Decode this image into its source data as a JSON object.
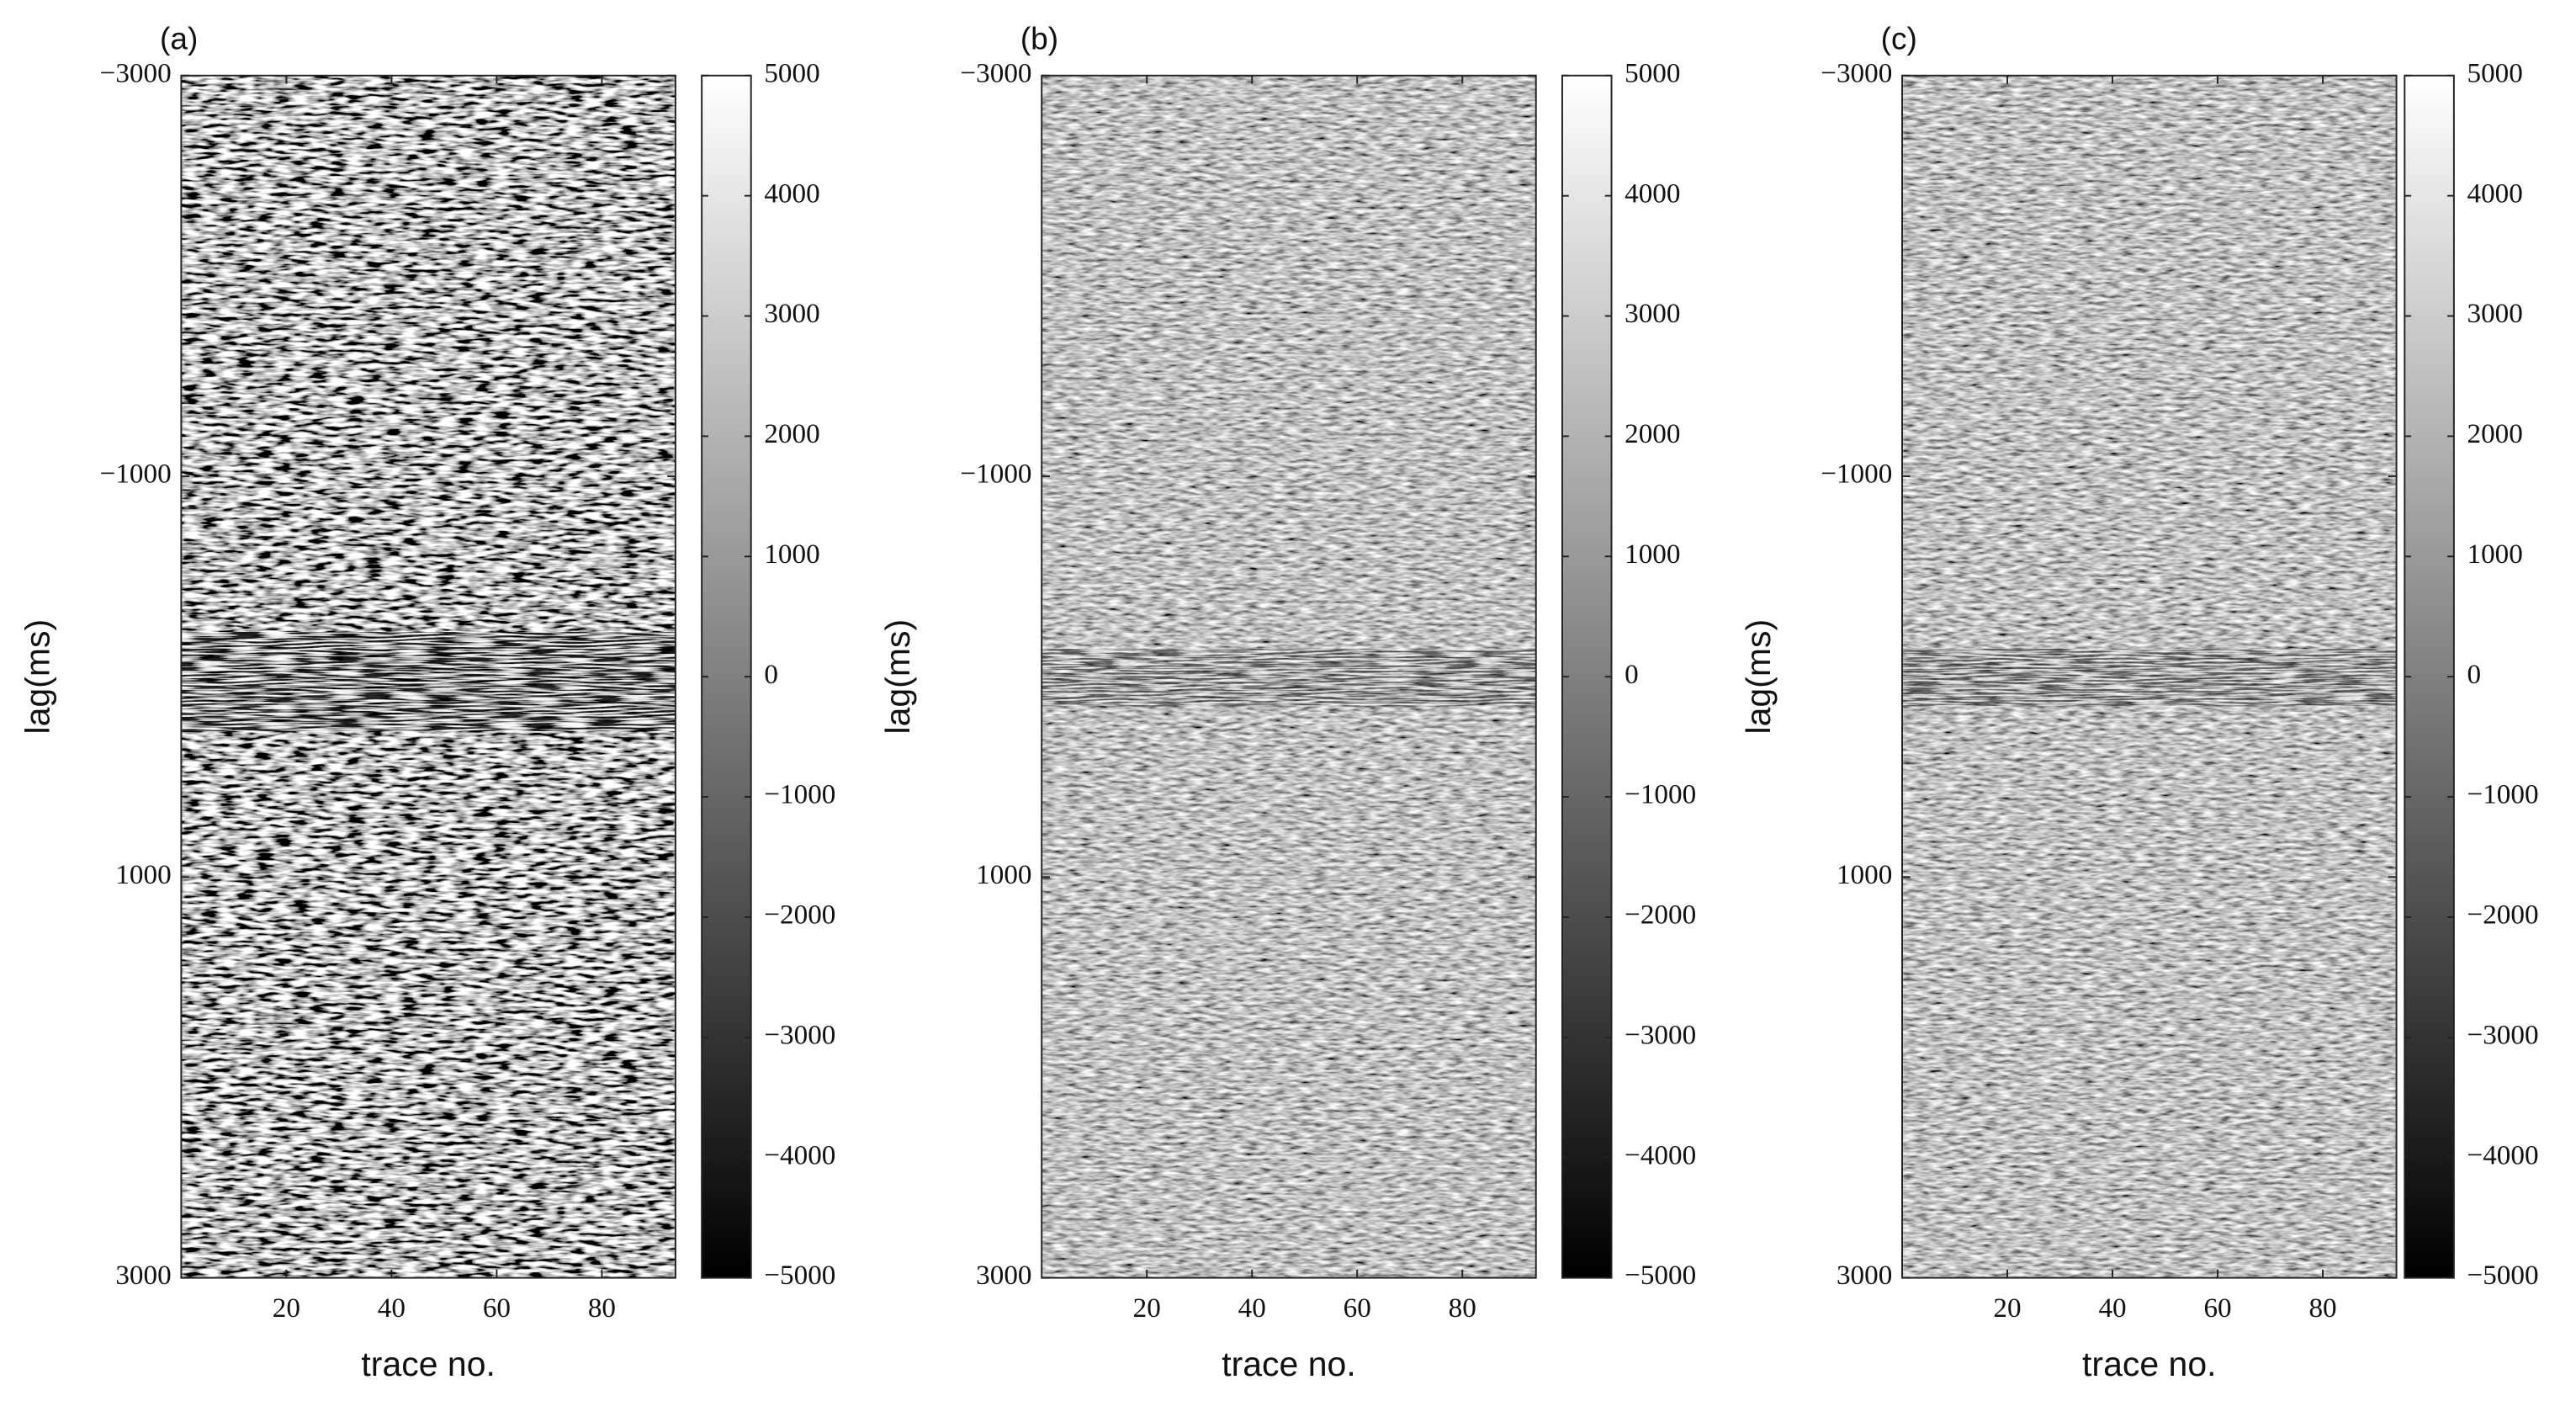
{
  "chart_data": [
    {
      "type": "heatmap",
      "panel_label": "(a)",
      "xlabel": "trace no.",
      "ylabel": "lag(ms)",
      "xlim": [
        0,
        94
      ],
      "xticks": [
        20,
        40,
        60,
        80
      ],
      "ylim": [
        3000,
        -3000
      ],
      "yticks": [
        {
          "value": -3000,
          "label": "−3000"
        },
        {
          "value": -1000,
          "label": "−1000"
        },
        1000,
        3000
      ],
      "colormap": "gray",
      "clim": [
        -5000,
        5000
      ],
      "cticks": [
        {
          "value": -5000,
          "label": "−5000"
        },
        {
          "value": -4000,
          "label": "−4000"
        },
        {
          "value": -3000,
          "label": "−3000"
        },
        {
          "value": -2000,
          "label": "−2000"
        },
        {
          "value": -1000,
          "label": "−1000"
        },
        0,
        1000,
        2000,
        3000,
        4000,
        5000
      ]
    },
    {
      "type": "heatmap",
      "panel_label": "(b)",
      "xlabel": "trace no.",
      "ylabel": "lag(ms)",
      "xlim": [
        0,
        94
      ],
      "xticks": [
        20,
        40,
        60,
        80
      ],
      "ylim": [
        3000,
        -3000
      ],
      "yticks": [
        {
          "value": -3000,
          "label": "−3000"
        },
        {
          "value": -1000,
          "label": "−1000"
        },
        1000,
        3000
      ],
      "colormap": "gray",
      "clim": [
        -5000,
        5000
      ],
      "cticks": [
        {
          "value": -5000,
          "label": "−5000"
        },
        {
          "value": -4000,
          "label": "−4000"
        },
        {
          "value": -3000,
          "label": "−3000"
        },
        {
          "value": -2000,
          "label": "−2000"
        },
        {
          "value": -1000,
          "label": "−1000"
        },
        0,
        1000,
        2000,
        3000,
        4000,
        5000
      ]
    },
    {
      "type": "heatmap",
      "panel_label": "(c)",
      "xlabel": "trace no.",
      "ylabel": "lag(ms)",
      "xlim": [
        0,
        94
      ],
      "xticks": [
        20,
        40,
        60,
        80
      ],
      "ylim": [
        3000,
        -3000
      ],
      "yticks": [
        {
          "value": -3000,
          "label": "−3000"
        },
        {
          "value": -1000,
          "label": "−1000"
        },
        1000,
        3000
      ],
      "colormap": "gray",
      "clim": [
        -5000,
        5000
      ],
      "cticks": [
        {
          "value": -5000,
          "label": "−5000"
        },
        {
          "value": -4000,
          "label": "−4000"
        },
        {
          "value": -3000,
          "label": "−3000"
        },
        {
          "value": -2000,
          "label": "−2000"
        },
        {
          "value": -1000,
          "label": "−1000"
        },
        0,
        1000,
        2000,
        3000,
        4000,
        5000
      ]
    }
  ]
}
